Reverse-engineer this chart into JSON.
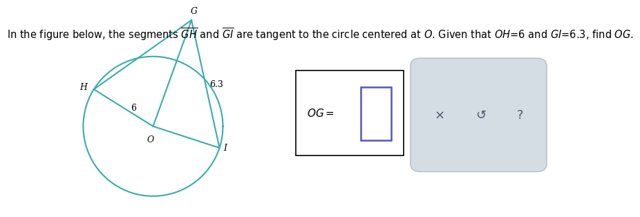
{
  "circle_color": "#3aabab",
  "line_color": "#3aabab",
  "line_width": 1.5,
  "bg_color": "#ffffff",
  "label_O": "O",
  "label_H": "H",
  "label_G": "G",
  "label_I": "I",
  "label_6": "6",
  "label_63": "6.3",
  "box_border_color": "#000000",
  "input_box_border": "#5555bb",
  "button_bg": "#d4dce4",
  "button_border": "#b8c4cc",
  "font_size_labels": 9,
  "title": "In the figure below, the segments $\\overline{GH}$ and $\\overline{GI}$ are tangent to the circle centered at $\\itO$. Given that $\\itO\\itH$=6 and $\\itG\\itI$=6.3, find $\\itO\\itG$."
}
